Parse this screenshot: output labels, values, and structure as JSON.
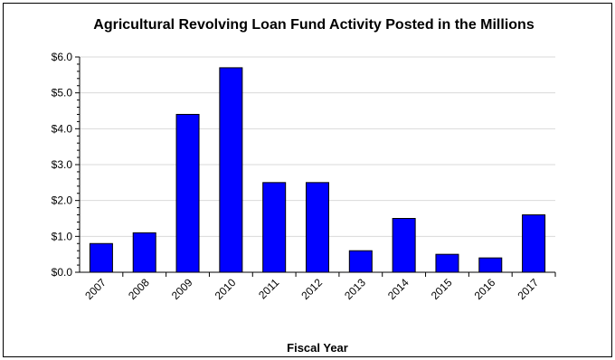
{
  "chart_data": {
    "type": "bar",
    "title": "Agricultural Revolving Loan Fund Activity Posted in the Millions",
    "xlabel": "Fiscal Year",
    "ylabel": "",
    "categories": [
      "2007",
      "2008",
      "2009",
      "2010",
      "2011",
      "2012",
      "2013",
      "2014",
      "2015",
      "2016",
      "2017"
    ],
    "values": [
      0.8,
      1.1,
      4.4,
      5.7,
      2.5,
      2.5,
      0.6,
      1.5,
      0.5,
      0.4,
      1.6
    ],
    "ylim": [
      0,
      6
    ],
    "yticks": [
      0,
      1,
      2,
      3,
      4,
      5,
      6
    ],
    "ytick_labels": [
      "$0.0",
      "$1.0",
      "$2.0",
      "$3.0",
      "$4.0",
      "$5.0",
      "$6.0"
    ],
    "grid": true,
    "legend": "none",
    "bar_color": "#0000ff",
    "grid_color": "#d9d9d9"
  }
}
